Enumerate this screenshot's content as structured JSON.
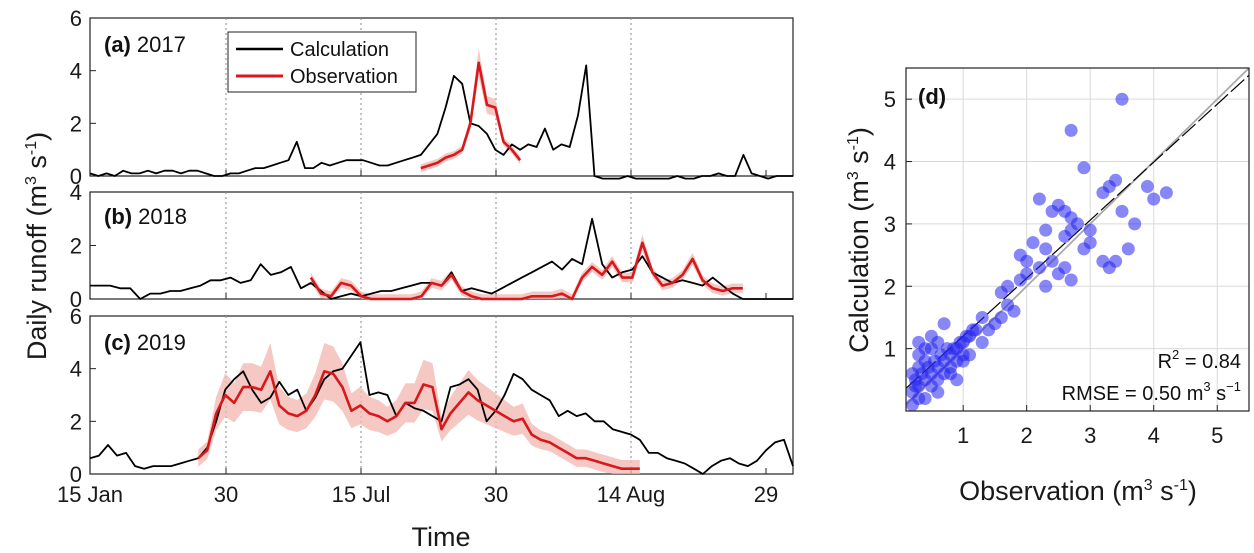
{
  "colors": {
    "calculation": "#000000",
    "observation": "#d7191c",
    "observation_band": "#f3b6b0",
    "scatter_point": "#2424f0",
    "grid": "#d9d9d9",
    "fit_line": "#000000",
    "one_to_one_line": "#aaaaaa"
  },
  "shared": {
    "ylabel_main": "Daily runoff (m",
    "ylabel_unit": "3",
    "ylabel_tail": " s",
    "ylabel_exp": "-1",
    "ylabel_close": ")",
    "xlabel": "Time",
    "xticks": [
      "15 Jan",
      "30",
      "15 Jul",
      "30",
      "14 Aug",
      "29"
    ],
    "legend": [
      "Calculation",
      "Observation"
    ]
  },
  "chart_data": [
    {
      "type": "line",
      "panel": "(a)",
      "year": "2017",
      "ylim": [
        0,
        6
      ],
      "yticks": [
        "0",
        "2",
        "4",
        "6"
      ],
      "series": [
        {
          "name": "Calculation",
          "values": [
            0.1,
            0.0,
            0.1,
            0.0,
            0.2,
            0.1,
            0.1,
            0.2,
            0.1,
            0.2,
            0.2,
            0.1,
            0.2,
            0.2,
            0.1,
            0.0,
            0.0,
            0.1,
            0.1,
            0.2,
            0.3,
            0.3,
            0.4,
            0.5,
            0.6,
            1.3,
            0.3,
            0.3,
            0.5,
            0.4,
            0.5,
            0.6,
            0.6,
            0.6,
            0.5,
            0.4,
            0.4,
            0.5,
            0.6,
            0.7,
            0.8,
            1.2,
            1.6,
            2.6,
            3.8,
            3.5,
            2.0,
            1.9,
            1.6,
            1.0,
            0.8,
            1.2,
            1.0,
            1.2,
            1.1,
            1.8,
            1.0,
            1.2,
            1.1,
            2.3,
            4.2,
            0.0,
            -0.1,
            -0.1,
            -0.1,
            0.0,
            -0.1,
            -0.1,
            -0.1,
            -0.1,
            -0.1,
            0.0,
            -0.1,
            -0.1,
            0.0,
            0.0,
            0.1,
            0.0,
            0.0,
            0.8,
            0.1,
            0.0,
            -0.1,
            0.0,
            0.0,
            0.0
          ]
        },
        {
          "name": "Observation",
          "start": 40,
          "values": [
            0.3,
            0.4,
            0.5,
            0.7,
            0.8,
            1.0,
            2.0,
            4.3,
            2.7,
            2.6,
            1.3,
            1.0,
            0.6
          ],
          "band": 0.25
        }
      ]
    },
    {
      "type": "line",
      "panel": "(b)",
      "year": "2018",
      "ylim": [
        0,
        4
      ],
      "yticks": [
        "0",
        "2",
        "4"
      ],
      "series": [
        {
          "name": "Calculation",
          "values": [
            0.5,
            0.5,
            0.5,
            0.4,
            0.4,
            0.0,
            0.2,
            0.2,
            0.3,
            0.3,
            0.4,
            0.5,
            0.7,
            0.7,
            0.8,
            0.6,
            0.7,
            1.3,
            0.9,
            1.0,
            1.2,
            0.4,
            0.6,
            0.3,
            0.0,
            0.1,
            0.2,
            0.1,
            0.2,
            0.3,
            0.3,
            0.4,
            0.5,
            0.6,
            0.6,
            0.5,
            1.0,
            0.3,
            0.4,
            0.3,
            0.2,
            0.4,
            0.6,
            0.8,
            1.0,
            1.2,
            1.4,
            1.1,
            1.5,
            1.3,
            3.0,
            1.3,
            0.8,
            1.0,
            1.1,
            1.6,
            1.0,
            0.8,
            0.6,
            0.7,
            0.6,
            0.5,
            0.8,
            0.5,
            0.2,
            0.0,
            0.0,
            0.0,
            0.0,
            0.0,
            0.0
          ]
        },
        {
          "name": "Observation",
          "start": 22,
          "values": [
            0.8,
            0.2,
            0.1,
            0.6,
            0.5,
            0.1,
            0.0,
            0.0,
            0.0,
            0.0,
            0.0,
            0.1,
            0.6,
            0.5,
            0.9,
            0.3,
            0.1,
            0.0,
            0.0,
            0.0,
            0.0,
            0.0,
            0.1,
            0.1,
            0.1,
            0.2,
            0.0,
            0.8,
            1.2,
            0.9,
            1.4,
            0.8,
            0.8,
            2.1,
            1.0,
            0.5,
            0.6,
            0.9,
            1.5,
            0.7,
            0.4,
            0.3,
            0.4,
            0.4
          ],
          "band": 0.3
        }
      ]
    },
    {
      "type": "line",
      "panel": "(c)",
      "year": "2019",
      "ylim": [
        0,
        6
      ],
      "yticks": [
        "0",
        "2",
        "4",
        "6"
      ],
      "series": [
        {
          "name": "Calculation",
          "values": [
            0.6,
            0.7,
            1.1,
            0.7,
            0.8,
            0.3,
            0.2,
            0.3,
            0.3,
            0.3,
            0.4,
            0.5,
            0.6,
            1.0,
            2.0,
            3.2,
            3.6,
            3.9,
            3.2,
            2.7,
            2.9,
            3.5,
            3.0,
            3.2,
            2.4,
            2.9,
            3.6,
            3.9,
            4.0,
            4.5,
            5.0,
            3.0,
            3.1,
            3.0,
            2.2,
            2.7,
            2.5,
            2.4,
            2.2,
            2.0,
            3.3,
            3.4,
            3.6,
            3.2,
            2.0,
            2.4,
            3.0,
            3.8,
            3.6,
            3.2,
            3.0,
            2.8,
            2.2,
            2.4,
            2.2,
            2.3,
            2.0,
            2.0,
            1.7,
            1.6,
            1.5,
            1.3,
            0.8,
            0.8,
            0.6,
            0.5,
            0.4,
            0.2,
            0.0,
            0.3,
            0.5,
            0.6,
            0.4,
            0.3,
            0.5,
            0.9,
            1.2,
            1.3,
            0.3
          ]
        },
        {
          "name": "Observation",
          "start": 12,
          "values": [
            0.6,
            0.9,
            2.3,
            3.0,
            2.7,
            3.3,
            3.3,
            3.2,
            3.9,
            2.6,
            2.3,
            2.2,
            2.4,
            3.0,
            3.9,
            3.8,
            3.3,
            2.4,
            2.6,
            2.3,
            2.2,
            2.0,
            2.2,
            2.7,
            2.7,
            3.4,
            3.3,
            1.7,
            2.3,
            2.7,
            3.1,
            2.8,
            2.6,
            2.4,
            2.2,
            2.0,
            2.1,
            1.5,
            1.3,
            1.2,
            1.0,
            0.8,
            0.6,
            0.6,
            0.5,
            0.4,
            0.3,
            0.2,
            0.2,
            0.2
          ],
          "band": 0.55
        }
      ]
    },
    {
      "type": "scatter",
      "panel": "(d)",
      "xlabel": "Observation (m",
      "ylabel": "Calculation (m",
      "label_unit": "3",
      "label_tail": " s",
      "label_exp": "-1",
      "label_close": ")",
      "xlim": [
        0.1,
        5.5
      ],
      "ylim": [
        0.0,
        5.5
      ],
      "xticks": [
        "1",
        "2",
        "3",
        "4",
        "5"
      ],
      "yticks": [
        "1",
        "2",
        "3",
        "4",
        "5"
      ],
      "r2_label": "R",
      "r2_sup": "2",
      "r2_value": " = 0.84",
      "rmse_label": "RMSE = 0.50 m",
      "rmse_sup": "3",
      "rmse_mid": " s",
      "rmse_exp": "−1",
      "fit": {
        "slope": 0.93,
        "intercept": 0.27
      },
      "x": [
        3.5,
        2.7,
        2.9,
        3.3,
        3.2,
        3.4,
        3.9,
        4.2,
        2.2,
        2.5,
        2.4,
        2.6,
        2.7,
        2.8,
        2.3,
        2.1,
        1.9,
        2.0,
        2.2,
        2.6,
        3.0,
        3.5,
        3.7,
        4.0,
        3.6,
        3.3,
        3.2,
        2.9,
        2.7,
        2.5,
        2.3,
        1.7,
        1.8,
        1.6,
        1.5,
        1.4,
        1.2,
        1.3,
        1.1,
        1.0,
        0.9,
        0.8,
        0.7,
        0.6,
        0.5,
        0.4,
        0.3,
        0.2,
        0.25,
        0.35,
        0.45,
        0.55,
        0.65,
        0.75,
        0.85,
        0.95,
        1.05,
        1.15,
        0.3,
        0.4,
        0.5,
        0.6,
        0.7,
        0.8,
        0.9,
        1.0,
        0.2,
        0.3,
        0.4,
        0.5,
        0.6,
        0.2,
        0.3,
        1.6,
        1.9,
        2.4,
        2.6,
        2.7,
        3.0,
        3.4,
        0.9,
        1.1,
        0.7,
        0.5,
        0.3,
        1.3,
        1.7,
        2.0,
        2.3,
        0.6,
        0.8,
        1.0,
        0.4,
        0.25
      ],
      "y": [
        5.0,
        4.5,
        3.9,
        3.6,
        3.5,
        3.7,
        3.6,
        3.5,
        3.4,
        3.3,
        3.2,
        3.2,
        3.1,
        3.0,
        2.9,
        2.7,
        2.5,
        2.4,
        2.3,
        2.3,
        2.9,
        3.2,
        3.0,
        3.4,
        2.6,
        2.3,
        2.4,
        2.6,
        2.1,
        2.2,
        2.0,
        1.7,
        1.6,
        1.5,
        1.4,
        1.3,
        1.3,
        1.1,
        1.2,
        1.1,
        1.0,
        0.9,
        0.8,
        0.7,
        0.6,
        0.5,
        0.4,
        0.3,
        0.5,
        0.6,
        0.7,
        0.8,
        0.9,
        1.0,
        1.0,
        1.1,
        1.2,
        1.3,
        0.9,
        1.0,
        0.4,
        0.5,
        0.6,
        0.7,
        0.8,
        0.9,
        0.6,
        0.7,
        0.8,
        1.0,
        1.1,
        0.1,
        0.2,
        1.9,
        2.1,
        2.4,
        2.8,
        2.9,
        2.7,
        2.4,
        0.5,
        0.9,
        1.4,
        1.2,
        1.1,
        1.5,
        2.0,
        2.2,
        2.6,
        0.3,
        0.6,
        0.8,
        0.2,
        0.4
      ]
    }
  ]
}
